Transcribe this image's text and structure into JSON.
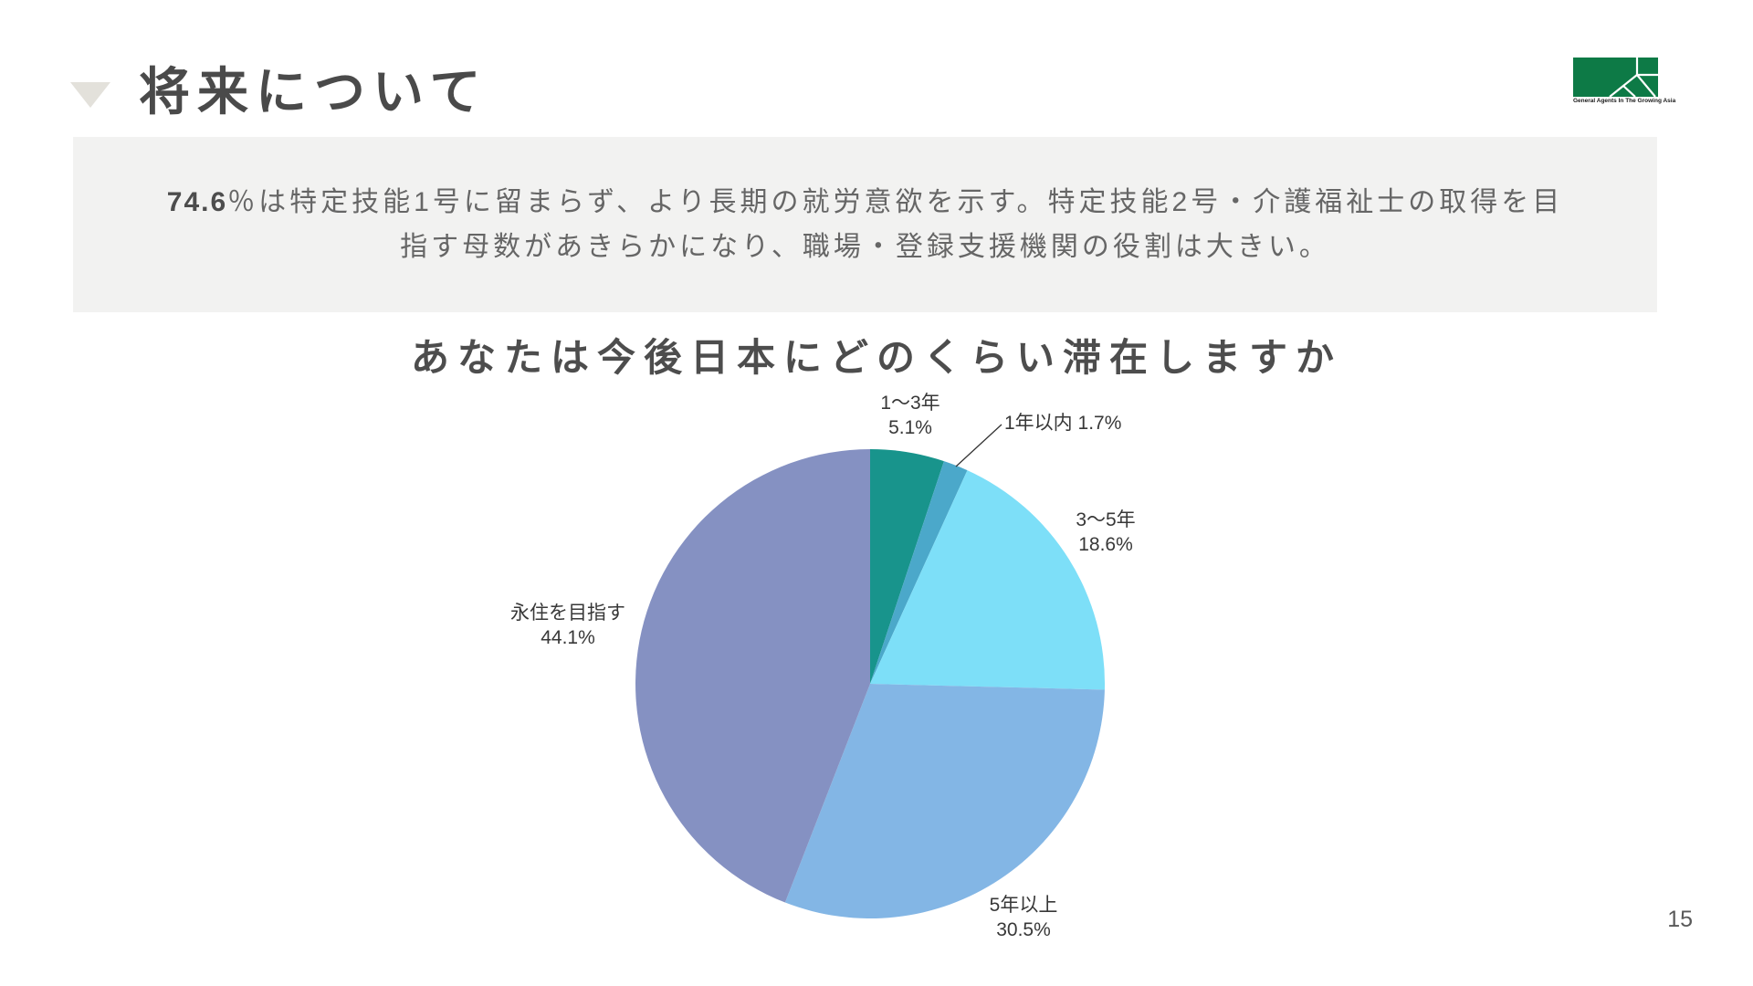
{
  "page": {
    "number": "15"
  },
  "header": {
    "title": "将来について",
    "logo": {
      "caption": "General Agents In The Growing Asia",
      "color": "#0D7A46"
    }
  },
  "summary": {
    "highlight": "74.6",
    "line1_rest": "％は特定技能1号に留まらず、より長期の就労意欲を示す。特定技能2号・介護福祉士の取得を目",
    "line2": "指す母数があきらかになり、職場・登録支援機関の役割は大きい。"
  },
  "chart_data": {
    "type": "pie",
    "title": "あなたは今後日本にどのくらい滞在しますか",
    "unit": "%",
    "start_angle_deg": 0,
    "direction": "clockwise",
    "slices": [
      {
        "label": "1〜3年",
        "value": 5.1,
        "pct_label": "5.1%",
        "color": "#18948C"
      },
      {
        "label": "1年以内",
        "value": 1.7,
        "pct_label": "1.7%",
        "color": "#4BA8CA"
      },
      {
        "label": "3〜5年",
        "value": 18.6,
        "pct_label": "18.6%",
        "color": "#7DDFF8"
      },
      {
        "label": "5年以上",
        "value": 30.5,
        "pct_label": "30.5%",
        "color": "#83B6E5"
      },
      {
        "label": "永住を目指す",
        "value": 44.1,
        "pct_label": "44.1%",
        "color": "#8591C2"
      }
    ]
  }
}
